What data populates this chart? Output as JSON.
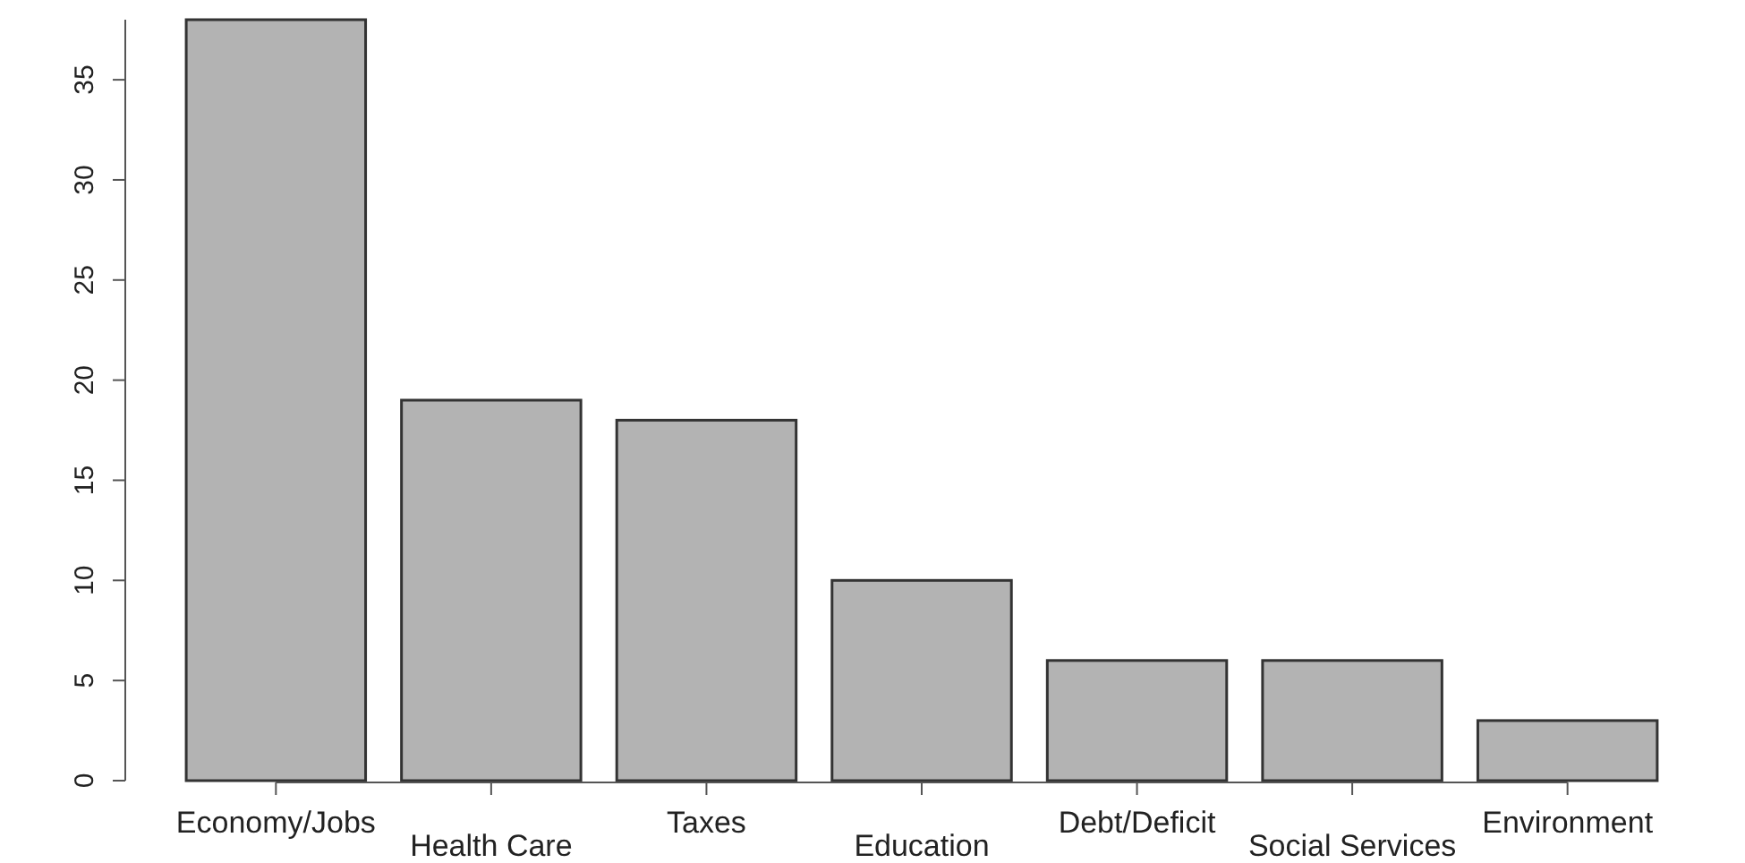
{
  "chart_data": {
    "type": "bar",
    "categories": [
      "Economy/Jobs",
      "Health Care",
      "Taxes",
      "Education",
      "Debt/Deficit",
      "Social Services",
      "Environment"
    ],
    "values": [
      38,
      19,
      18,
      10,
      6,
      6,
      3
    ],
    "color": "#b3b3b3",
    "ylim": [
      0,
      38
    ],
    "yticks": [
      0,
      5,
      10,
      15,
      20,
      25,
      30,
      35
    ]
  }
}
